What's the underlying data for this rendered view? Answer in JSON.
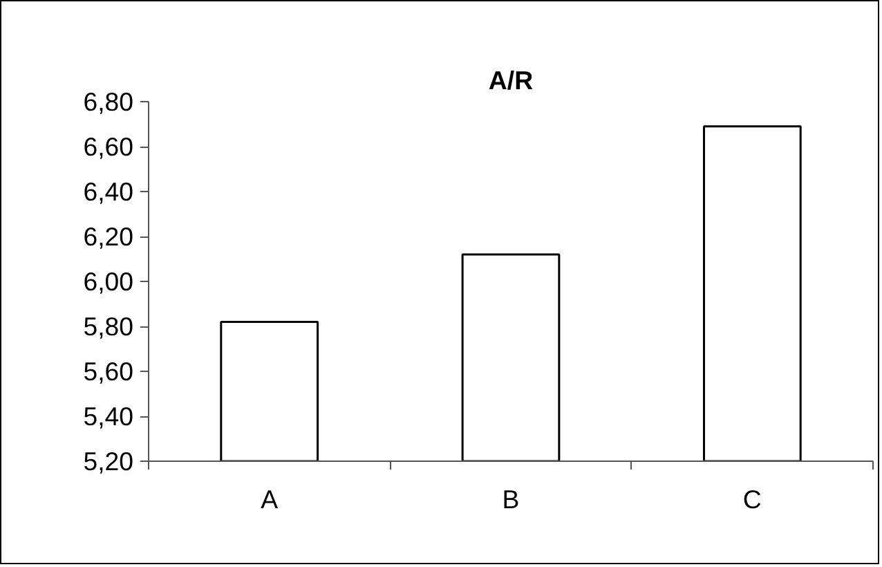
{
  "chart_data": {
    "type": "bar",
    "title": "A/R",
    "categories": [
      "A",
      "B",
      "C"
    ],
    "values": [
      5.82,
      6.12,
      6.69
    ],
    "color": "#ffffff",
    "ylim": [
      5.2,
      6.8
    ],
    "yticks": [
      {
        "value": 5.2,
        "label": "5,20"
      },
      {
        "value": 5.4,
        "label": "5,40"
      },
      {
        "value": 5.6,
        "label": "5,60"
      },
      {
        "value": 5.8,
        "label": "5,80"
      },
      {
        "value": 6.0,
        "label": "6,00"
      },
      {
        "value": 6.2,
        "label": "6,20"
      },
      {
        "value": 6.4,
        "label": "6,40"
      },
      {
        "value": 6.6,
        "label": "6,60"
      },
      {
        "value": 6.8,
        "label": "6,80"
      }
    ],
    "grid": false
  }
}
